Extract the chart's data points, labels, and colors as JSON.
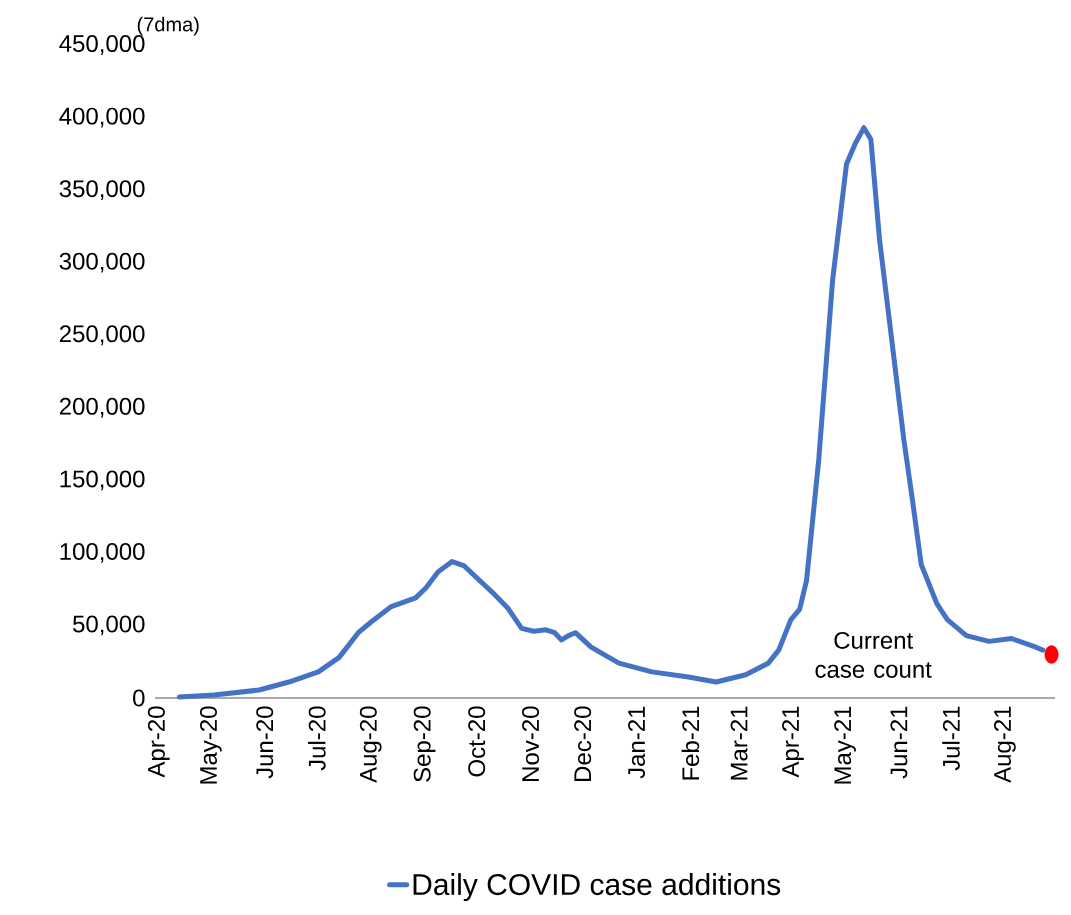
{
  "chart_data": {
    "type": "line",
    "annotations": [
      "(7dma)",
      "Current case count"
    ],
    "xlim": [
      "2020-03-31",
      "2021-08-31"
    ],
    "xticks": [
      {
        "value": "2020-04-01",
        "label": "Apr-20"
      },
      {
        "value": "2020-05-01",
        "label": "May-20"
      },
      {
        "value": "2020-06-01",
        "label": "Jun-20"
      },
      {
        "value": "2020-07-01",
        "label": "Jul-20"
      },
      {
        "value": "2020-08-01",
        "label": "Aug-20"
      },
      {
        "value": "2020-09-01",
        "label": "Sep-20"
      },
      {
        "value": "2020-10-01",
        "label": "Oct-20"
      },
      {
        "value": "2020-11-01",
        "label": "Nov-20"
      },
      {
        "value": "2020-12-01",
        "label": "Dec-20"
      },
      {
        "value": "2021-01-01",
        "label": "Jan-21"
      },
      {
        "value": "2021-02-01",
        "label": "Feb-21"
      },
      {
        "value": "2021-03-01",
        "label": "Mar-21"
      },
      {
        "value": "2021-04-01",
        "label": "Apr-21"
      },
      {
        "value": "2021-05-01",
        "label": "May-21"
      },
      {
        "value": "2021-06-01",
        "label": "Jun-21"
      },
      {
        "value": "2021-07-01",
        "label": "Jul-21"
      },
      {
        "value": "2021-08-01",
        "label": "Aug-21"
      }
    ],
    "ylim": [
      0,
      450000
    ],
    "yticks": [
      0,
      {
        "value": 50000,
        "label": "50,000"
      },
      {
        "value": 100000,
        "label": "100,000"
      },
      {
        "value": 150000,
        "label": "150,000"
      },
      {
        "value": 200000,
        "label": "200,000"
      },
      {
        "value": 250000,
        "label": "250,000"
      },
      {
        "value": 300000,
        "label": "300,000"
      },
      {
        "value": 350000,
        "label": "350,000"
      },
      {
        "value": 400000,
        "label": "400,000"
      },
      {
        "value": 450000,
        "label": "450,000"
      }
    ],
    "legend": "bottom",
    "series": [
      {
        "name": "Daily COVID case additions",
        "color": "#4472c4",
        "marker": "none",
        "line_style": "solid",
        "x": [
          "2020-04-14",
          "2020-05-04",
          "2020-05-30",
          "2020-06-16",
          "2020-07-03",
          "2020-07-15",
          "2020-07-26",
          "2020-08-02",
          "2020-08-14",
          "2020-08-28",
          "2020-09-03",
          "2020-09-10",
          "2020-09-18",
          "2020-09-25",
          "2020-10-02",
          "2020-10-11",
          "2020-10-20",
          "2020-10-28",
          "2020-11-04",
          "2020-11-11",
          "2020-11-16",
          "2020-11-20",
          "2020-11-24",
          "2020-11-28",
          "2020-12-07",
          "2020-12-23",
          "2021-01-11",
          "2021-02-01",
          "2021-02-17",
          "2021-03-06",
          "2021-03-19",
          "2021-03-25",
          "2021-04-01",
          "2021-04-06",
          "2021-04-10",
          "2021-04-17",
          "2021-04-25",
          "2021-05-03",
          "2021-05-08",
          "2021-05-13",
          "2021-05-17",
          "2021-05-22",
          "2021-05-29",
          "2021-06-05",
          "2021-06-10",
          "2021-06-15",
          "2021-06-24",
          "2021-06-30",
          "2021-07-11",
          "2021-07-24",
          "2021-08-06",
          "2021-08-20",
          "2021-08-24"
        ],
        "values": [
          700,
          2100,
          5500,
          11000,
          18000,
          28000,
          45000,
          52000,
          63000,
          69000,
          76000,
          87000,
          94000,
          91000,
          83000,
          73000,
          62000,
          48000,
          46000,
          47000,
          45000,
          40000,
          43000,
          45000,
          35000,
          24000,
          18000,
          14500,
          11000,
          16000,
          24000,
          33000,
          54000,
          61000,
          81000,
          164000,
          288000,
          368000,
          382000,
          393000,
          385000,
          316000,
          247000,
          178000,
          136000,
          92000,
          65000,
          54000,
          43000,
          39000,
          41000,
          35000,
          33000
        ]
      },
      {
        "type": "scatter",
        "color": "#ff0000",
        "marker": "circle",
        "x": [
          "2021-08-29"
        ],
        "values": [
          30000
        ]
      }
    ]
  }
}
